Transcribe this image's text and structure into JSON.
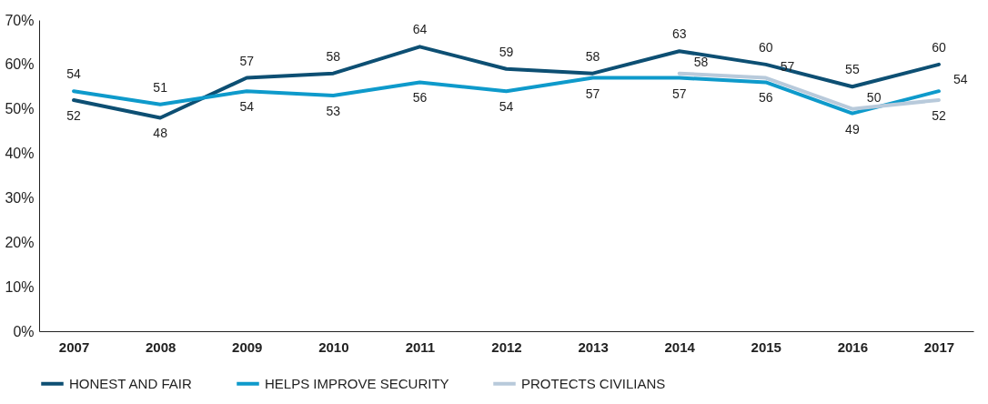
{
  "chart_data": {
    "type": "line",
    "categories": [
      "2007",
      "2008",
      "2009",
      "2010",
      "2011",
      "2012",
      "2013",
      "2014",
      "2015",
      "2016",
      "2017"
    ],
    "series": [
      {
        "name": "HONEST AND FAIR",
        "color": "#0d4f73",
        "values": [
          52,
          48,
          57,
          58,
          64,
          59,
          58,
          63,
          60,
          55,
          60
        ]
      },
      {
        "name": "HELPS IMPROVE SECURITY",
        "color": "#0e9acb",
        "values": [
          54,
          51,
          54,
          53,
          56,
          54,
          57,
          57,
          56,
          49,
          54
        ]
      },
      {
        "name": "PROTECTS CIVILIANS",
        "color": "#b8cadb",
        "values": [
          null,
          null,
          null,
          null,
          null,
          null,
          null,
          58,
          57,
          50,
          52
        ]
      }
    ],
    "ylim": [
      0,
      70
    ],
    "yticks": [
      {
        "value": 0,
        "label": "0%"
      },
      {
        "value": 10,
        "label": "10%"
      },
      {
        "value": 20,
        "label": "20%"
      },
      {
        "value": 30,
        "label": "30%"
      },
      {
        "value": 40,
        "label": "40%"
      },
      {
        "value": 50,
        "label": "50%"
      },
      {
        "value": 60,
        "label": "60%"
      },
      {
        "value": 70,
        "label": "70%"
      }
    ],
    "data_labels": true,
    "legend": "bottom",
    "grid": false,
    "marker": "none",
    "line_style": "solid"
  }
}
